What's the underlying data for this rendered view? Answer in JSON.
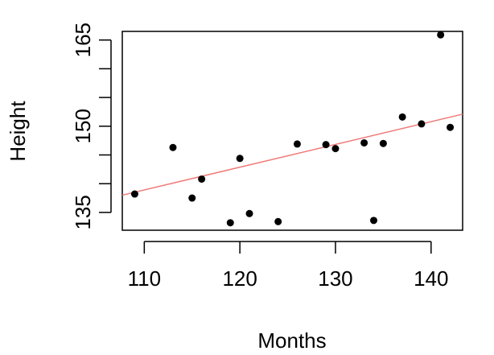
{
  "chart_data": {
    "type": "scatter",
    "xlabel": "Months",
    "ylabel": "Height",
    "xlim": [
      107.7,
      143.3
    ],
    "ylim": [
      131.9,
      166.5
    ],
    "xticks": [
      110,
      120,
      130,
      140
    ],
    "yticks": [
      135,
      150,
      165
    ],
    "points": [
      {
        "x": 109,
        "y": 138.2
      },
      {
        "x": 113,
        "y": 146.3
      },
      {
        "x": 115,
        "y": 137.5
      },
      {
        "x": 116,
        "y": 140.8
      },
      {
        "x": 119,
        "y": 133.2
      },
      {
        "x": 120,
        "y": 144.4
      },
      {
        "x": 121,
        "y": 134.8
      },
      {
        "x": 124,
        "y": 133.4
      },
      {
        "x": 126,
        "y": 146.9
      },
      {
        "x": 129,
        "y": 146.8
      },
      {
        "x": 130,
        "y": 146.1
      },
      {
        "x": 133,
        "y": 147.1
      },
      {
        "x": 134,
        "y": 133.6
      },
      {
        "x": 135,
        "y": 147.0
      },
      {
        "x": 137,
        "y": 151.6
      },
      {
        "x": 139,
        "y": 150.4
      },
      {
        "x": 141,
        "y": 165.9
      },
      {
        "x": 142,
        "y": 149.8
      }
    ],
    "trendline": {
      "type": "linear",
      "color": "#f07a78",
      "x": [
        107.7,
        143.3
      ],
      "y": [
        138.0,
        152.1
      ]
    },
    "point_color": "#000000",
    "grid": false,
    "legend": "none"
  }
}
